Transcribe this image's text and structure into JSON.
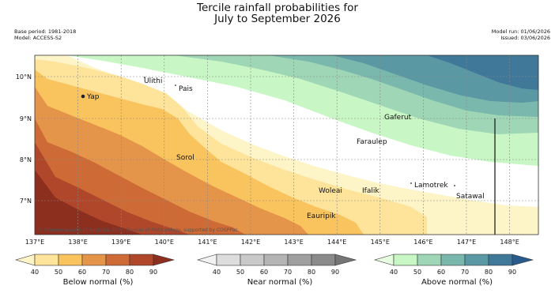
{
  "title": {
    "line1": "Tercile rainfall probabilities for",
    "line2": "July to September 2026"
  },
  "meta": {
    "base_period": "Base period: 1981-2018",
    "model": "Model: ACCESS-S2",
    "model_run": "Model run: 01/06/2026",
    "issued": "Issued: 03/06/2026"
  },
  "axes": {
    "lon_ticks": [
      "137°E",
      "138°E",
      "139°E",
      "140°E",
      "141°E",
      "142°E",
      "143°E",
      "144°E",
      "145°E",
      "146°E",
      "147°E",
      "148°E"
    ],
    "lat_ticks": [
      "10°N",
      "9°N",
      "8°N",
      "7°N"
    ]
  },
  "places": [
    "Ulithi",
    "Yap",
    "Pais",
    "Gaferut",
    "Faraulep",
    "Sorol",
    "Lamotrek",
    "Woleai",
    "Ifalik",
    "Satawal",
    "Eauripik"
  ],
  "copyright": "© Commonwealth of Australia 2026, Bureau of Meteorology, supported by COSPPac",
  "legends": {
    "below": {
      "title": "Below normal (%)",
      "ticks": [
        "40",
        "50",
        "60",
        "70",
        "80",
        "90"
      ],
      "colors": [
        "#fdf4c8",
        "#fee39a",
        "#f9c45e",
        "#e5954a",
        "#cd6a36",
        "#b0472a",
        "#8d2f1f"
      ]
    },
    "near": {
      "title": "Near normal (%)",
      "ticks": [
        "40",
        "50",
        "60",
        "70",
        "80",
        "90"
      ],
      "colors": [
        "#f2f2f2",
        "#dddddd",
        "#c9c9c9",
        "#b4b4b4",
        "#9f9f9f",
        "#8a8a8a",
        "#757575"
      ]
    },
    "above": {
      "title": "Above normal (%)",
      "ticks": [
        "40",
        "50",
        "60",
        "70",
        "80",
        "90"
      ],
      "colors": [
        "#e6fde0",
        "#c8f7c5",
        "#9fd6b6",
        "#7ab8ad",
        "#5a98a3",
        "#3f7898",
        "#285b8c"
      ]
    }
  }
}
